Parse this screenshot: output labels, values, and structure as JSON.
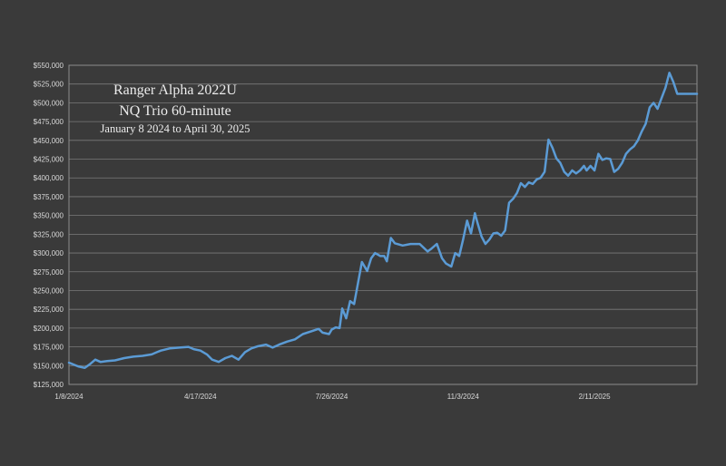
{
  "chart_data": {
    "type": "line",
    "title": [
      "Ranger Alpha 2022U",
      "NQ Trio 60-minute",
      "January 8 2024 to April 30, 2025"
    ],
    "xlabel": "",
    "ylabel": "",
    "ylim": [
      125000,
      550000
    ],
    "yticks": [
      125000,
      150000,
      175000,
      200000,
      225000,
      250000,
      275000,
      300000,
      325000,
      350000,
      375000,
      400000,
      425000,
      450000,
      475000,
      500000,
      525000,
      550000
    ],
    "ytick_labels": [
      "$125,000",
      "$150,000",
      "$175,000",
      "$200,000",
      "$225,000",
      "$250,000",
      "$275,000",
      "$300,000",
      "$325,000",
      "$350,000",
      "$375,000",
      "$400,000",
      "$425,000",
      "$450,000",
      "$475,000",
      "$500,000",
      "$525,000",
      "$550,000"
    ],
    "xlim": [
      "2024-01-08",
      "2025-04-30"
    ],
    "xticks": [
      "2024-01-08",
      "2024-04-17",
      "2024-07-26",
      "2024-11-03",
      "2025-02-11"
    ],
    "xtick_labels": [
      "1/8/2024",
      "4/17/2024",
      "7/26/2024",
      "11/3/2024",
      "2/11/2025"
    ],
    "grid": "horizontal",
    "line_color": "#5b9bd5",
    "series": [
      {
        "x": [
          "2024-01-08",
          "2024-01-15",
          "2024-01-20",
          "2024-01-24",
          "2024-01-28",
          "2024-02-01",
          "2024-02-06",
          "2024-02-12",
          "2024-02-19",
          "2024-02-26",
          "2024-03-04",
          "2024-03-11",
          "2024-03-15",
          "2024-03-18",
          "2024-03-25",
          "2024-04-01",
          "2024-04-08",
          "2024-04-12",
          "2024-04-17",
          "2024-04-22",
          "2024-04-26",
          "2024-05-01",
          "2024-05-06",
          "2024-05-11",
          "2024-05-16",
          "2024-05-21",
          "2024-05-26",
          "2024-05-31",
          "2024-06-06",
          "2024-06-11",
          "2024-06-16",
          "2024-06-22",
          "2024-06-28",
          "2024-07-04",
          "2024-07-11",
          "2024-07-16",
          "2024-07-19",
          "2024-07-24",
          "2024-07-26",
          "2024-07-29",
          "2024-08-01",
          "2024-08-03",
          "2024-08-06",
          "2024-08-09",
          "2024-08-12",
          "2024-08-15",
          "2024-08-18",
          "2024-08-22",
          "2024-08-25",
          "2024-08-28",
          "2024-09-01",
          "2024-09-04",
          "2024-09-06",
          "2024-09-09",
          "2024-09-12",
          "2024-09-18",
          "2024-09-24",
          "2024-10-01",
          "2024-10-07",
          "2024-10-10",
          "2024-10-14",
          "2024-10-18",
          "2024-10-21",
          "2024-10-25",
          "2024-10-28",
          "2024-10-31",
          "2024-11-03",
          "2024-11-06",
          "2024-11-09",
          "2024-11-12",
          "2024-11-14",
          "2024-11-17",
          "2024-11-20",
          "2024-11-23",
          "2024-11-26",
          "2024-11-29",
          "2024-12-02",
          "2024-12-05",
          "2024-12-08",
          "2024-12-11",
          "2024-12-14",
          "2024-12-17",
          "2024-12-20",
          "2024-12-23",
          "2024-12-26",
          "2024-12-29",
          "2025-01-01",
          "2025-01-04",
          "2025-01-07",
          "2025-01-10",
          "2025-01-13",
          "2025-01-16",
          "2025-01-19",
          "2025-01-22",
          "2025-01-25",
          "2025-01-28",
          "2025-01-31",
          "2025-02-03",
          "2025-02-05",
          "2025-02-08",
          "2025-02-11",
          "2025-02-14",
          "2025-02-17",
          "2025-02-20",
          "2025-02-23",
          "2025-02-26",
          "2025-03-01",
          "2025-03-04",
          "2025-03-07",
          "2025-03-10",
          "2025-03-13",
          "2025-03-16",
          "2025-03-19",
          "2025-03-22",
          "2025-03-25",
          "2025-03-28",
          "2025-03-31",
          "2025-04-03",
          "2025-04-06",
          "2025-04-09",
          "2025-04-12",
          "2025-04-15",
          "2025-04-18",
          "2025-04-21",
          "2025-04-24",
          "2025-04-27",
          "2025-04-30"
        ],
        "values": [
          154000,
          149000,
          147000,
          152000,
          158000,
          155000,
          156000,
          157000,
          160000,
          162000,
          163000,
          165000,
          168000,
          170000,
          173000,
          174000,
          175000,
          172000,
          170000,
          165000,
          158000,
          155000,
          160000,
          163000,
          158000,
          168000,
          173000,
          176000,
          178000,
          174000,
          178000,
          182000,
          185000,
          192000,
          196000,
          199000,
          194000,
          192000,
          198000,
          201000,
          200000,
          226000,
          213000,
          236000,
          232000,
          260000,
          288000,
          276000,
          293000,
          300000,
          296000,
          296000,
          289000,
          320000,
          313000,
          310000,
          312000,
          312000,
          302000,
          306000,
          312000,
          293000,
          286000,
          282000,
          300000,
          296000,
          318000,
          343000,
          326000,
          353000,
          340000,
          322000,
          312000,
          318000,
          326000,
          327000,
          323000,
          330000,
          367000,
          372000,
          380000,
          393000,
          388000,
          394000,
          392000,
          398000,
          400000,
          408000,
          451000,
          440000,
          426000,
          420000,
          408000,
          403000,
          410000,
          406000,
          410000,
          416000,
          410000,
          416000,
          410000,
          432000,
          424000,
          426000,
          425000,
          408000,
          412000,
          420000,
          432000,
          438000,
          442000,
          450000,
          462000,
          472000,
          494000,
          500000,
          492000,
          506000,
          520000,
          540000,
          528000,
          512000,
          512000,
          512000,
          512000,
          512000,
          512000
        ]
      }
    ]
  }
}
